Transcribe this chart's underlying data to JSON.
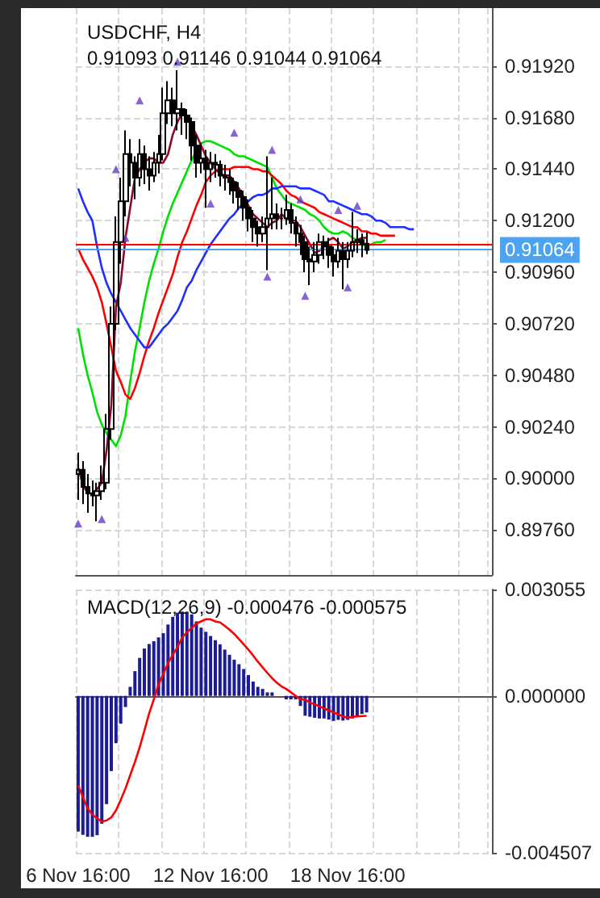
{
  "chart_data": [
    {
      "type": "candlestick",
      "title": "USDCHF, H4",
      "subtitle": "0.91093 0.91146 0.91044 0.91064",
      "grid": true,
      "tick_labels": "y",
      "color": "#000000",
      "categories": [
        null,
        null,
        null,
        null,
        null,
        null,
        null,
        null,
        null,
        null,
        null,
        null,
        null,
        null,
        null,
        null,
        null,
        null,
        null,
        null,
        null,
        null,
        null,
        null,
        null,
        null,
        null,
        null,
        null,
        null,
        null,
        null,
        null,
        null,
        null,
        null,
        null,
        null,
        null,
        null,
        null,
        null,
        null,
        null,
        null,
        null,
        null,
        null,
        null,
        null,
        null,
        null,
        null,
        null,
        null,
        null,
        null,
        null,
        null,
        null,
        null,
        null,
        null,
        null,
        null,
        null,
        null,
        null,
        null,
        null,
        null,
        null,
        null,
        null,
        null,
        null,
        null,
        null,
        null,
        null,
        null,
        null,
        null,
        null,
        null,
        null,
        null,
        null
      ],
      "ylim": [
        0.8955,
        0.9219
      ],
      "yticks": [
        {
          "value": 0.9192,
          "label": "0.91920"
        },
        {
          "value": 0.9168,
          "label": "0.91680"
        },
        {
          "value": 0.9144,
          "label": "0.91440"
        },
        {
          "value": 0.912,
          "label": "0.91200"
        },
        {
          "value": 0.9096,
          "label": "0.90960"
        },
        {
          "value": 0.9072,
          "label": "0.90720"
        },
        {
          "value": 0.9048,
          "label": "0.90480"
        },
        {
          "value": 0.9024,
          "label": "0.90240"
        },
        {
          "value": 0.9,
          "label": "0.90000"
        },
        {
          "value": 0.8976,
          "label": "0.89760"
        }
      ],
      "ohlc": [
        [
          0.9002,
          0.9012,
          0.899,
          0.9004
        ],
        [
          0.9004,
          0.9008,
          0.8988,
          0.8996
        ],
        [
          0.8996,
          0.9002,
          0.8984,
          0.8993
        ],
        [
          0.8993,
          0.8999,
          0.8987,
          0.8992
        ],
        [
          0.8992,
          0.8998,
          0.898,
          0.8994
        ],
        [
          0.8994,
          0.9006,
          0.899,
          0.8998
        ],
        [
          0.8998,
          0.903,
          0.8995,
          0.9023
        ],
        [
          0.9023,
          0.908,
          0.9018,
          0.9072
        ],
        [
          0.9072,
          0.9122,
          0.9069,
          0.911
        ],
        [
          0.911,
          0.914,
          0.91,
          0.9129
        ],
        [
          0.9129,
          0.9162,
          0.9122,
          0.9151
        ],
        [
          0.9151,
          0.9158,
          0.9136,
          0.9147
        ],
        [
          0.9147,
          0.915,
          0.913,
          0.914
        ],
        [
          0.914,
          0.9158,
          0.9136,
          0.9151
        ],
        [
          0.9151,
          0.9155,
          0.9137,
          0.9144
        ],
        [
          0.9144,
          0.915,
          0.9134,
          0.9141
        ],
        [
          0.9141,
          0.9152,
          0.9138,
          0.9147
        ],
        [
          0.9147,
          0.916,
          0.9142,
          0.9151
        ],
        [
          0.9151,
          0.9182,
          0.9148,
          0.917
        ],
        [
          0.917,
          0.9185,
          0.9165,
          0.9176
        ],
        [
          0.9176,
          0.9182,
          0.9164,
          0.917
        ],
        [
          0.917,
          0.919,
          0.9162,
          0.9172
        ],
        [
          0.9172,
          0.9175,
          0.916,
          0.9169
        ],
        [
          0.9169,
          0.9172,
          0.9158,
          0.9166
        ],
        [
          0.9166,
          0.9168,
          0.9148,
          0.9155
        ],
        [
          0.9155,
          0.916,
          0.914,
          0.9147
        ],
        [
          0.9147,
          0.9156,
          0.9142,
          0.9149
        ],
        [
          0.9149,
          0.9153,
          0.9126,
          0.9144
        ],
        [
          0.9144,
          0.9152,
          0.9138,
          0.9147
        ],
        [
          0.9147,
          0.9151,
          0.914,
          0.9146
        ],
        [
          0.9146,
          0.9148,
          0.9136,
          0.9141
        ],
        [
          0.9141,
          0.9146,
          0.9134,
          0.914
        ],
        [
          0.914,
          0.9144,
          0.9132,
          0.9138
        ],
        [
          0.9138,
          0.914,
          0.9128,
          0.9134
        ],
        [
          0.9134,
          0.9138,
          0.9125,
          0.9131
        ],
        [
          0.9131,
          0.9134,
          0.912,
          0.9126
        ],
        [
          0.9126,
          0.913,
          0.9115,
          0.9121
        ],
        [
          0.9121,
          0.9125,
          0.911,
          0.9117
        ],
        [
          0.9117,
          0.912,
          0.9108,
          0.9114
        ],
        [
          0.9114,
          0.9122,
          0.911,
          0.9117
        ],
        [
          0.9117,
          0.915,
          0.9097,
          0.9121
        ],
        [
          0.9121,
          0.914,
          0.9116,
          0.9123
        ],
        [
          0.9123,
          0.9128,
          0.9116,
          0.9121
        ],
        [
          0.9121,
          0.9126,
          0.9116,
          0.9121
        ],
        [
          0.9121,
          0.9132,
          0.9118,
          0.9125
        ],
        [
          0.9125,
          0.9128,
          0.9114,
          0.9119
        ],
        [
          0.9119,
          0.9122,
          0.9108,
          0.9114
        ],
        [
          0.9114,
          0.9118,
          0.9104,
          0.911
        ],
        [
          0.911,
          0.9113,
          0.9096,
          0.9102
        ],
        [
          0.9102,
          0.9108,
          0.909,
          0.9101
        ],
        [
          0.9101,
          0.911,
          0.9096,
          0.9104
        ],
        [
          0.9104,
          0.9114,
          0.91,
          0.911
        ],
        [
          0.911,
          0.9113,
          0.9102,
          0.9108
        ],
        [
          0.9108,
          0.9112,
          0.9098,
          0.9104
        ],
        [
          0.9104,
          0.9108,
          0.9094,
          0.9101
        ],
        [
          0.9101,
          0.9112,
          0.9098,
          0.9106
        ],
        [
          0.9106,
          0.911,
          0.9088,
          0.9102
        ],
        [
          0.9102,
          0.911,
          0.9098,
          0.9106
        ],
        [
          0.9106,
          0.9124,
          0.9103,
          0.911
        ],
        [
          0.911,
          0.9116,
          0.9105,
          0.9111
        ],
        [
          0.9111,
          0.9114,
          0.9103,
          0.9109
        ],
        [
          0.91093,
          0.91146,
          0.91044,
          0.91064
        ],
        null,
        null,
        null,
        null,
        null,
        null,
        null,
        null,
        null,
        null,
        null,
        null,
        null,
        null,
        null,
        null,
        null,
        null,
        null,
        null,
        null,
        null,
        null,
        null,
        null,
        null
      ],
      "series": [
        {
          "type": "line",
          "color": "#00e000",
          "values": [
            0.907,
            0.9058,
            0.9048,
            0.904,
            0.9031,
            0.9025,
            0.9021,
            0.9018,
            0.9015,
            0.902,
            0.9029,
            0.9045,
            0.9059,
            0.907,
            0.9082,
            0.9092,
            0.91,
            0.9107,
            0.9115,
            0.9122,
            0.9128,
            0.9133,
            0.9138,
            0.9143,
            0.9148,
            0.9153,
            0.9156,
            0.9157,
            0.9157,
            0.9156,
            0.9155,
            0.9154,
            0.9153,
            0.9151,
            0.915,
            0.915,
            0.9149,
            0.9148,
            0.9147,
            0.9146,
            0.9145,
            0.914,
            0.9135,
            0.9132,
            0.9129,
            0.9128,
            0.9127,
            0.9126,
            0.9125,
            0.9123,
            0.9122,
            0.912,
            0.9117,
            0.9115,
            0.9114,
            0.9114,
            0.9115,
            0.9114,
            0.9112,
            0.9111,
            0.9109,
            0.9108,
            0.9109,
            0.911,
            0.911,
            0.9111,
            null,
            null,
            null,
            null,
            null,
            null,
            null,
            null,
            null,
            null,
            null,
            null,
            null,
            null,
            null,
            null,
            null,
            null,
            null,
            null,
            null,
            null
          ]
        },
        {
          "type": "line",
          "color": "#ff0000",
          "values": [
            0.9107,
            0.9102,
            0.9098,
            0.9094,
            0.9089,
            0.9082,
            0.9072,
            0.9061,
            0.905,
            0.9045,
            0.9039,
            0.9037,
            0.9042,
            0.9049,
            0.9057,
            0.9064,
            0.907,
            0.9077,
            0.9083,
            0.9089,
            0.9095,
            0.9103,
            0.911,
            0.9115,
            0.9121,
            0.9127,
            0.9132,
            0.9138,
            0.9141,
            0.9143,
            0.9144,
            0.9144,
            0.9144,
            0.9145,
            0.9145,
            0.9145,
            0.9145,
            0.9144,
            0.9144,
            0.9143,
            0.9143,
            0.9141,
            0.9139,
            0.9137,
            0.9134,
            0.9132,
            0.9131,
            0.9129,
            0.9128,
            0.9127,
            0.9126,
            0.9124,
            0.9123,
            0.9122,
            0.9121,
            0.912,
            0.9119,
            0.9118,
            0.9117,
            0.9117,
            0.9115,
            0.9115,
            0.9114,
            0.9114,
            0.9113,
            0.9113,
            0.9113,
            0.9113,
            null,
            null,
            null,
            null,
            null,
            null,
            null,
            null,
            null,
            null,
            null,
            null,
            null,
            null,
            null,
            null,
            null,
            null,
            null,
            null
          ]
        },
        {
          "type": "line",
          "color": "#1f2fff",
          "values": [
            0.9135,
            0.9129,
            0.9124,
            0.912,
            0.9108,
            0.9098,
            0.9091,
            0.9086,
            0.9082,
            0.9078,
            0.9074,
            0.907,
            0.9067,
            0.9064,
            0.9061,
            0.9061,
            0.9064,
            0.9067,
            0.907,
            0.9072,
            0.9075,
            0.9078,
            0.9083,
            0.9089,
            0.9092,
            0.9097,
            0.9101,
            0.9105,
            0.9109,
            0.9112,
            0.9115,
            0.9118,
            0.9121,
            0.9123,
            0.9126,
            0.9128,
            0.9129,
            0.9131,
            0.9132,
            0.9132,
            0.9133,
            0.9135,
            0.9135,
            0.9136,
            0.9136,
            0.9136,
            0.9136,
            0.9135,
            0.9135,
            0.9135,
            0.9134,
            0.9133,
            0.9132,
            0.9129,
            0.9129,
            0.9128,
            0.9127,
            0.9126,
            0.9125,
            0.9124,
            0.9123,
            0.9123,
            0.9122,
            0.912,
            0.912,
            0.9119,
            0.9117,
            0.9117,
            0.9117,
            0.9117,
            0.9116,
            0.9116,
            null,
            null,
            null,
            null,
            null,
            null,
            null,
            null,
            null,
            null,
            null,
            null,
            null,
            null,
            null,
            null
          ]
        },
        {
          "type": "line",
          "color": "#8b0a2a",
          "values": [
            0.9005,
            0.8997,
            0.8993,
            0.8993,
            0.8995,
            0.8998,
            0.9013,
            0.9034,
            0.908,
            0.9091,
            0.9112,
            0.9126,
            0.914,
            0.9144,
            0.9147,
            0.9149,
            0.9149,
            0.9147,
            0.9147,
            0.9151,
            0.916,
            0.9166,
            0.917,
            0.9169,
            0.9164,
            0.916,
            0.9155,
            0.915,
            0.9147,
            0.9144,
            0.9142,
            0.9141,
            0.9141,
            0.9138,
            0.9135,
            0.9131,
            0.9127,
            0.9123,
            0.9121,
            0.9119,
            0.9117,
            0.9119,
            0.912,
            0.9123,
            0.9121,
            0.912,
            0.912,
            0.9117,
            0.9113,
            0.9109,
            0.9105,
            0.9106,
            0.9108,
            0.9111,
            0.9112,
            0.911,
            0.9107,
            0.9108,
            0.911,
            0.9111,
            0.9112,
            0.9112,
            null,
            null,
            null,
            null,
            null,
            null,
            null,
            null,
            null,
            null,
            null,
            null,
            null,
            null,
            null,
            null,
            null,
            null,
            null,
            null,
            null,
            null,
            null,
            null,
            null,
            null
          ]
        },
        {
          "type": "scatter",
          "color": "#6a3dc8",
          "marker": "triangle",
          "values": [
            null,
            null,
            null,
            null,
            null,
            null,
            null,
            null,
            0.9144,
            null,
            null,
            null,
            null,
            0.9176,
            null,
            null,
            null,
            null,
            null,
            null,
            null,
            0.9194,
            null,
            null,
            null,
            null,
            null,
            null,
            null,
            null,
            null,
            null,
            null,
            0.9161,
            null,
            null,
            null,
            null,
            null,
            null,
            null,
            0.9153,
            null,
            null,
            null,
            null,
            null,
            0.913,
            null,
            null,
            null,
            null,
            null,
            null,
            null,
            0.9125,
            null,
            null,
            null,
            0.9127,
            null,
            null,
            null,
            null,
            null,
            null,
            null,
            null,
            null,
            null,
            null,
            null,
            null,
            null,
            null,
            null,
            null,
            null,
            null,
            null,
            null,
            null,
            null,
            null,
            null,
            null,
            null,
            null
          ]
        },
        {
          "type": "scatter",
          "color": "#6a3dc8",
          "marker": "triangle",
          "values": [
            0.8979,
            null,
            null,
            null,
            null,
            0.8981,
            null,
            null,
            null,
            null,
            0.9112,
            null,
            null,
            null,
            null,
            null,
            null,
            null,
            null,
            null,
            null,
            null,
            null,
            null,
            null,
            null,
            null,
            null,
            0.9128,
            null,
            null,
            null,
            null,
            null,
            null,
            null,
            null,
            null,
            null,
            null,
            0.9094,
            null,
            null,
            null,
            null,
            null,
            null,
            null,
            0.9085,
            null,
            null,
            null,
            null,
            null,
            null,
            null,
            null,
            0.9089,
            null,
            null,
            null,
            null,
            null,
            null,
            null,
            null,
            null,
            null,
            null,
            null,
            null,
            null,
            null,
            null,
            null,
            null,
            null,
            null,
            null,
            null,
            null,
            null,
            null,
            null,
            null,
            null,
            null,
            null
          ]
        }
      ],
      "ref_lines": [
        {
          "axis": "y",
          "value": 0.9109,
          "label": null,
          "color": "#ff0000"
        },
        {
          "axis": "y",
          "value": 0.91064,
          "label": "0.91064",
          "color": "#4da3f0"
        }
      ]
    },
    {
      "type": "bar",
      "title": "MACD(12,26,9) -0.000476 -0.000575",
      "grid": true,
      "categories": [
        "6 Nov 16:00",
        null,
        null,
        null,
        null,
        null,
        null,
        null,
        null,
        null,
        null,
        null,
        null,
        null,
        null,
        null,
        null,
        null,
        null,
        null,
        null,
        null,
        null,
        null,
        null,
        null,
        null,
        null,
        "12 Nov 16:00",
        null,
        null,
        null,
        null,
        null,
        null,
        null,
        null,
        null,
        null,
        null,
        null,
        null,
        null,
        null,
        null,
        null,
        null,
        null,
        null,
        null,
        null,
        null,
        null,
        null,
        null,
        null,
        null,
        "18 Nov 16:00",
        null,
        null,
        null,
        null,
        null,
        null,
        null,
        null,
        null,
        null,
        null,
        null,
        null,
        null,
        null,
        null,
        null,
        null,
        null,
        null,
        null,
        null,
        null,
        null,
        null,
        null,
        null,
        null,
        null,
        null
      ],
      "ylim": [
        -0.004507,
        0.003055
      ],
      "yticks": [
        0.003055,
        {
          "value": 0,
          "label": "0.000000"
        },
        -0.004507
      ],
      "series": [
        {
          "color": "#1c1c96",
          "values": [
            -0.0039,
            -0.00399,
            -0.00405,
            -0.00405,
            -0.004,
            -0.00367,
            -0.00311,
            -0.00216,
            -0.00136,
            -0.0008,
            -0.00032,
            0.00026,
            0.00071,
            0.00109,
            0.00136,
            0.00149,
            0.00157,
            0.00168,
            0.0018,
            0.00205,
            0.00227,
            0.00239,
            0.00242,
            0.00242,
            0.00234,
            0.00214,
            0.00196,
            0.00184,
            0.00172,
            0.0016,
            0.00148,
            0.00133,
            0.00118,
            0.00104,
            0.00091,
            0.00077,
            0.0006,
            0.00041,
            0.00026,
            0.0002,
            0.0001,
            0.0001,
            0,
            0,
            -0.0001,
            -0.0001,
            -0.0001,
            -0.00029,
            -0.00057,
            -0.0006,
            -0.00063,
            -0.00065,
            -0.00065,
            -0.00068,
            -0.00072,
            -0.00069,
            -0.00071,
            -0.00069,
            -0.00065,
            -0.0006,
            -0.00052,
            -0.000476,
            null,
            null,
            null,
            null,
            null,
            null,
            null,
            null,
            null,
            null,
            null,
            null,
            null,
            null,
            null,
            null,
            null,
            null,
            null,
            null,
            null,
            null,
            null,
            null,
            null,
            null
          ]
        },
        {
          "type": "line",
          "color": "#ff0000",
          "values": [
            -0.00257,
            -0.00291,
            -0.00323,
            -0.00341,
            -0.00352,
            -0.00361,
            -0.00358,
            -0.00349,
            -0.00329,
            -0.00299,
            -0.00266,
            -0.00228,
            -0.0019,
            -0.00148,
            -0.001,
            -0.00051,
            -0.0001,
            0.00033,
            0.00063,
            0.00094,
            0.00118,
            0.0014,
            0.00168,
            0.00183,
            0.00195,
            0.00208,
            0.00214,
            0.0022,
            0.0022,
            0.00214,
            0.00211,
            0.00201,
            0.0019,
            0.00178,
            0.00163,
            0.00148,
            0.00133,
            0.00116,
            0.00098,
            0.00082,
            0.00066,
            0.00051,
            0.00038,
            0.00027,
            0.0002,
            0.0001,
            0,
            -0.0001,
            -0.0001,
            -0.0002,
            -0.00024,
            -0.0003,
            -0.00036,
            -0.00042,
            -0.00047,
            -0.00053,
            -0.00059,
            -0.00063,
            -0.0006,
            -0.00059,
            -0.00058,
            -0.000575,
            null,
            null,
            null,
            null,
            null,
            null,
            null,
            null,
            null,
            null,
            null,
            null,
            null,
            null,
            null,
            null,
            null,
            null,
            null,
            null,
            null,
            null,
            null,
            null,
            null,
            null
          ]
        }
      ]
    }
  ]
}
